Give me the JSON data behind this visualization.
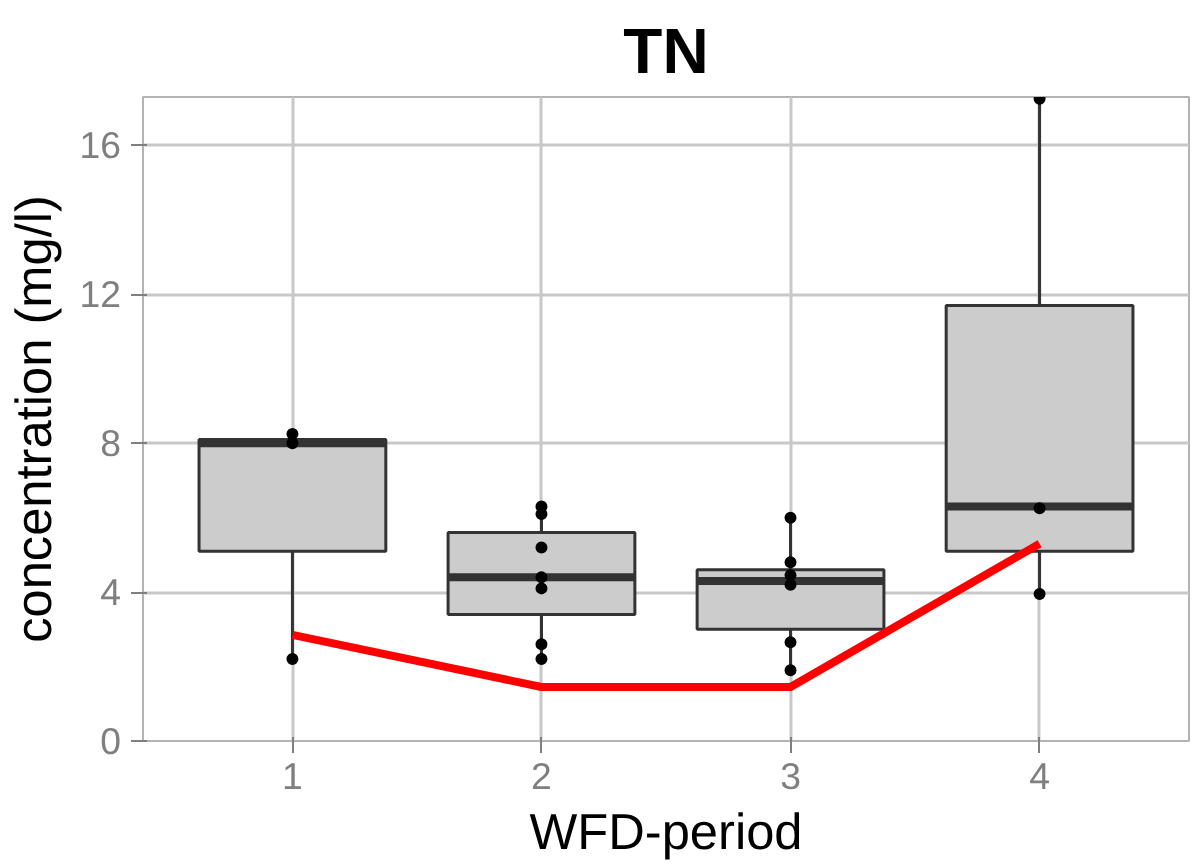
{
  "chart_data": {
    "type": "box",
    "title": "TN",
    "xlabel": "WFD-period",
    "ylabel": "concentration (mg/l)",
    "categories": [
      "1",
      "2",
      "3",
      "4"
    ],
    "boxes": [
      {
        "low": 2.2,
        "q1": 5.1,
        "median": 8.0,
        "q3": 8.1,
        "high": 8.2
      },
      {
        "low": 2.3,
        "q1": 3.4,
        "median": 4.4,
        "q3": 5.6,
        "high": 6.3
      },
      {
        "low": 1.9,
        "q1": 3.0,
        "median": 4.3,
        "q3": 4.6,
        "high": 6.0
      },
      {
        "low": 3.9,
        "q1": 5.1,
        "median": 6.3,
        "q3": 11.7,
        "high": 17.25
      }
    ],
    "color": "#cccccc",
    "series": [
      {
        "type": "scatter",
        "color": "#000000",
        "marker": "circle",
        "x": [
          "1",
          "1",
          "1",
          "2",
          "2",
          "2",
          "2",
          "2",
          "2",
          "2",
          "3",
          "3",
          "3",
          "3",
          "3",
          "3",
          "4",
          "4",
          "4"
        ],
        "values": [
          2.2,
          8.25,
          8.0,
          6.1,
          6.3,
          4.1,
          4.4,
          2.2,
          2.6,
          5.2,
          6.0,
          2.65,
          4.45,
          4.8,
          4.2,
          1.9,
          17.25,
          6.25,
          3.95
        ]
      },
      {
        "type": "line",
        "color": "#ff0000",
        "values": [
          2.85,
          1.45,
          1.45,
          5.3
        ]
      }
    ],
    "ylim": [
      0,
      17.3
    ],
    "yticks": [
      0,
      4,
      8,
      12,
      16
    ],
    "grid": true
  }
}
